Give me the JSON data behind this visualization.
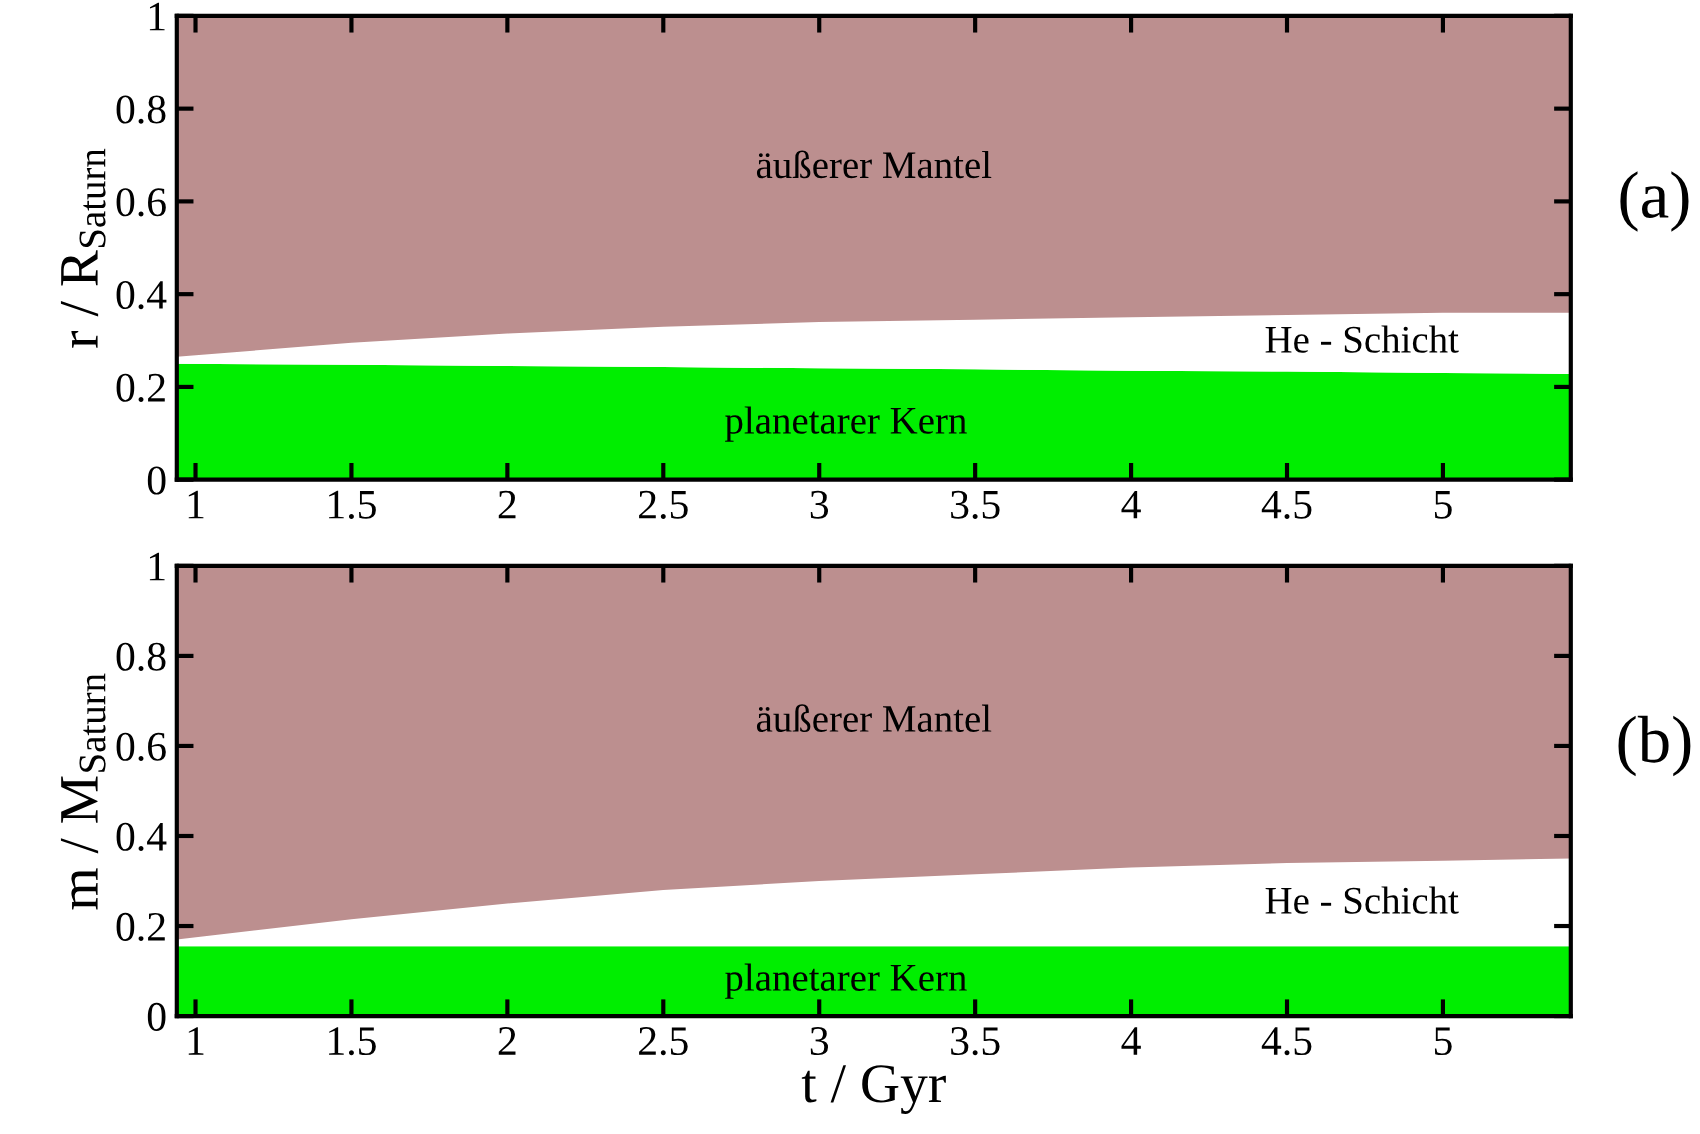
{
  "chart_data": [
    {
      "type": "area",
      "stacked": true,
      "ylabel": "r / R$_{Saturn}$",
      "xlim": [
        0.94,
        5.41
      ],
      "ylim": [
        0,
        1
      ],
      "xticks": [
        1,
        1.5,
        2,
        2.5,
        3,
        3.5,
        4,
        4.5,
        5
      ],
      "yticks": [
        0,
        0.2,
        0.4,
        0.6,
        0.8,
        1
      ],
      "grid": false,
      "legend": false,
      "x": [
        0.94,
        1.5,
        2,
        2.5,
        3,
        3.5,
        4,
        4.5,
        5,
        5.41
      ],
      "series": [
        {
          "name": "planetarer Kern",
          "color": "#00ee00",
          "values": [
            0.25,
            0.248,
            0.245,
            0.243,
            0.24,
            0.238,
            0.235,
            0.233,
            0.23,
            0.228
          ]
        },
        {
          "name": "He - Schicht",
          "color": "#ffffff",
          "values": [
            0.015,
            0.047,
            0.07,
            0.087,
            0.1,
            0.107,
            0.115,
            0.122,
            0.13,
            0.132
          ]
        },
        {
          "name": "äußerer Mantel",
          "color": "#bc8f8f",
          "values": [
            0.735,
            0.705,
            0.685,
            0.67,
            0.66,
            0.655,
            0.65,
            0.645,
            0.64,
            0.64
          ]
        }
      ],
      "annotations": [
        "(a)"
      ]
    },
    {
      "type": "area",
      "stacked": true,
      "ylabel": "m / M$_{Saturn}$",
      "xlabel": "t / Gyr",
      "xlim": [
        0.94,
        5.41
      ],
      "ylim": [
        0,
        1
      ],
      "xticks": [
        1,
        1.5,
        2,
        2.5,
        3,
        3.5,
        4,
        4.5,
        5
      ],
      "yticks": [
        0,
        0.2,
        0.4,
        0.6,
        0.8,
        1
      ],
      "grid": false,
      "legend": false,
      "x": [
        0.94,
        1.5,
        2,
        2.5,
        3,
        3.5,
        4,
        4.5,
        5,
        5.41
      ],
      "series": [
        {
          "name": "planetarer Kern",
          "color": "#00ee00",
          "values": [
            0.155,
            0.155,
            0.155,
            0.155,
            0.155,
            0.155,
            0.155,
            0.155,
            0.155,
            0.155
          ]
        },
        {
          "name": "He - Schicht",
          "color": "#ffffff",
          "values": [
            0.015,
            0.06,
            0.095,
            0.125,
            0.145,
            0.16,
            0.175,
            0.185,
            0.19,
            0.195
          ]
        },
        {
          "name": "äußerer Mantel",
          "color": "#bc8f8f",
          "values": [
            0.83,
            0.785,
            0.75,
            0.72,
            0.7,
            0.685,
            0.67,
            0.66,
            0.655,
            0.65
          ]
        }
      ],
      "annotations": [
        "(b)"
      ]
    }
  ]
}
